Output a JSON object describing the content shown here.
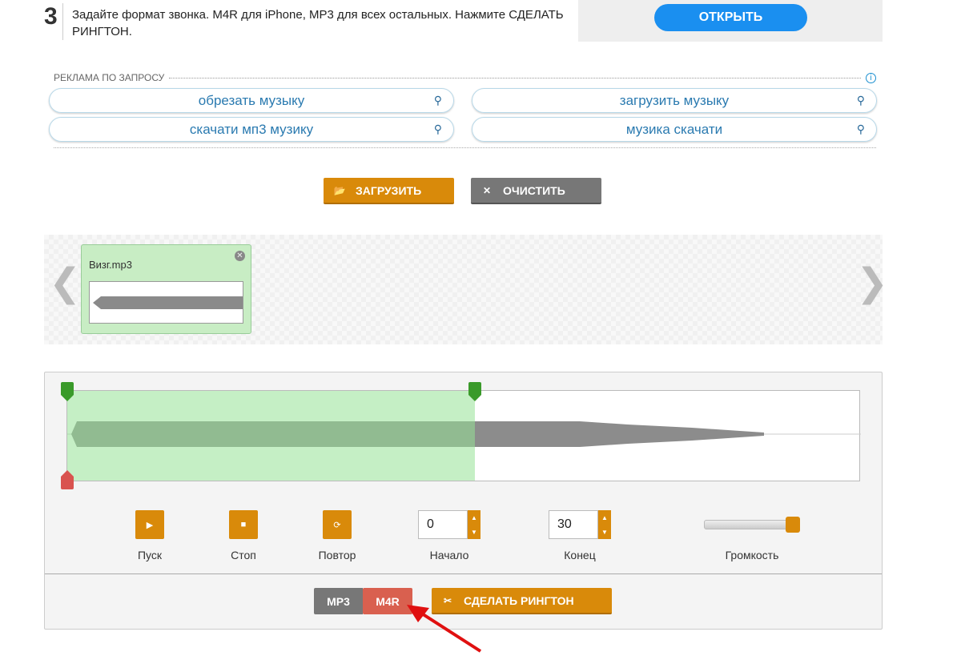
{
  "step": {
    "number": "3",
    "text": "Задайте формат звонка. M4R для iPhone, MP3 для всех остальных. Нажмите СДЕЛАТЬ РИНГТОН."
  },
  "ad": {
    "open_label": "ОТКРЫТЬ",
    "label": "РЕКЛАМА ПО ЗАПРОСУ",
    "info_icon": "i",
    "queries": [
      "обрезать музыку",
      "загрузить музыку",
      "скачати мп3 музику",
      "музика скачати"
    ]
  },
  "toolbar": {
    "upload_label": "ЗАГРУЗИТЬ",
    "clear_label": "ОЧИСТИТЬ"
  },
  "files": [
    {
      "name": "Визг.mp3"
    }
  ],
  "editor": {
    "play_label": "Пуск",
    "stop_label": "Стоп",
    "repeat_label": "Повтор",
    "start_label": "Начало",
    "start_value": "0",
    "end_label": "Конец",
    "end_value": "30",
    "volume_label": "Громкость",
    "volume_percent": 100,
    "format_mp3": "MP3",
    "format_m4r": "M4R",
    "selected_format": "M4R",
    "make_label": "СДЕЛАТЬ РИНГТОН"
  },
  "colors": {
    "accent": "#d98a0a",
    "blue": "#1a8ff0",
    "selected_format": "#d9604f",
    "selection": "#c6efc5"
  }
}
